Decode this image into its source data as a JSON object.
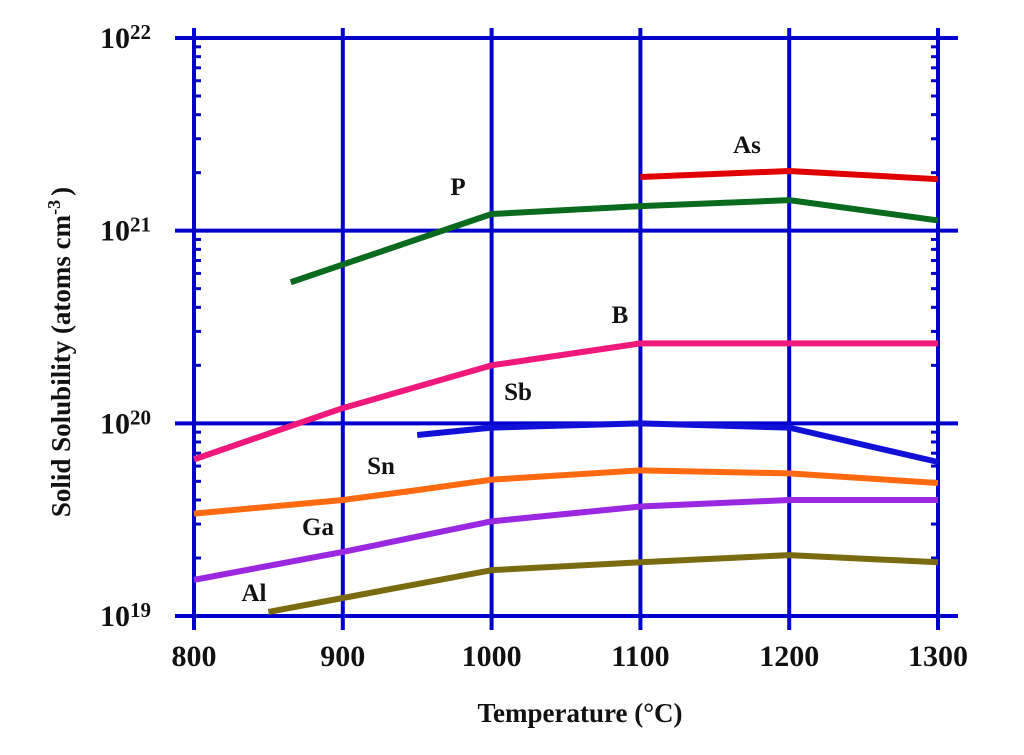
{
  "chart_data": {
    "type": "line",
    "xlabel": "Temperature (°C)",
    "ylabel_main": "Solid Solubility (atoms cm",
    "ylabel_sup": "-3",
    "ylabel_end": ")",
    "xlim": [
      800,
      1300
    ],
    "ylim": [
      1e+19,
      1e+22
    ],
    "yscale": "log",
    "grid": true,
    "grid_color": "#0000cc",
    "x_ticks": [
      "800",
      "900",
      "1000",
      "1100",
      "1200",
      "1300"
    ],
    "y_ticks": [
      {
        "base": "10",
        "exp": "22"
      },
      {
        "base": "10",
        "exp": "21"
      },
      {
        "base": "10",
        "exp": "20"
      },
      {
        "base": "10",
        "exp": "19"
      }
    ],
    "series": [
      {
        "name": "As",
        "color": "#e00000",
        "x": [
          1100,
          1200,
          1300
        ],
        "y": [
          1.9e+21,
          2.04e+21,
          1.85e+21
        ]
      },
      {
        "name": "P",
        "color": "#0a6b1e",
        "x": [
          865,
          1000,
          1100,
          1200,
          1300
        ],
        "y": [
          5.4e+20,
          1.22e+21,
          1.34e+21,
          1.44e+21,
          1.13e+21
        ]
      },
      {
        "name": "B",
        "color": "#f0187a",
        "x": [
          800,
          900,
          1000,
          1100,
          1200,
          1300
        ],
        "y": [
          6.5e+19,
          1.2e+20,
          2e+20,
          2.6e+20,
          2.6e+20,
          2.6e+20
        ]
      },
      {
        "name": "Sb",
        "color": "#1010d8",
        "x": [
          950,
          1000,
          1100,
          1200,
          1300
        ],
        "y": [
          8.7e+19,
          9.5e+19,
          1e+20,
          9.5e+19,
          6.3e+19
        ]
      },
      {
        "name": "Sn",
        "color": "#ff6a10",
        "x": [
          800,
          900,
          950,
          1000,
          1100,
          1200,
          1300
        ],
        "y": [
          3.4e+19,
          4e+19,
          4.5e+19,
          5.1e+19,
          5.7e+19,
          5.5e+19,
          4.9e+19
        ]
      },
      {
        "name": "Ga",
        "color": "#9a28e0",
        "x": [
          800,
          900,
          1000,
          1100,
          1200,
          1300
        ],
        "y": [
          1.54e+19,
          2.15e+19,
          3.1e+19,
          3.7e+19,
          4e+19,
          4e+19
        ]
      },
      {
        "name": "Al",
        "color": "#7a6a10",
        "x": [
          850,
          900,
          1000,
          1100,
          1200,
          1300
        ],
        "y": [
          1.05e+19,
          1.24e+19,
          1.73e+19,
          1.9e+19,
          2.07e+19,
          1.9e+19
        ]
      }
    ]
  }
}
